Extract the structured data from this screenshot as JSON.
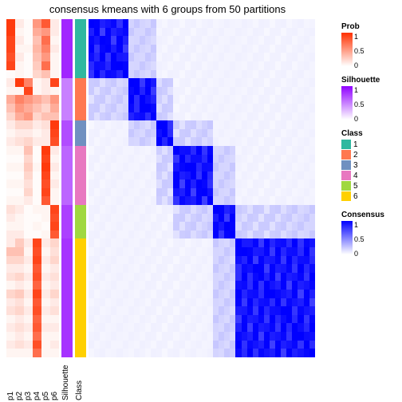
{
  "title": "consensus kmeans with 6 groups from 50 partitions",
  "layout": {
    "rows": 40,
    "row_h": 10.6,
    "p_w": 11,
    "ann_w": 14,
    "gap": 3,
    "cons_w": 7.1,
    "cons_cols": 40
  },
  "colors": {
    "prob": [
      "#ffffff",
      "#ff3000"
    ],
    "silh": [
      "#ffffff",
      "#9000ff"
    ],
    "cons": [
      "#ffffff",
      "#0000ff"
    ],
    "class": {
      "1": "#2fb8a0",
      "2": "#ff7850",
      "3": "#7090c0",
      "4": "#e878c0",
      "5": "#a0d840",
      "6": "#ffd000"
    }
  },
  "xlabels": [
    "p1",
    "p2",
    "p3",
    "p4",
    "p5",
    "p6",
    "Silhouette",
    "Class"
  ],
  "groups": [
    {
      "cls": "1",
      "n": 7
    },
    {
      "cls": "2",
      "n": 5
    },
    {
      "cls": "3",
      "n": 3
    },
    {
      "cls": "4",
      "n": 7
    },
    {
      "cls": "5",
      "n": 4
    },
    {
      "cls": "6",
      "n": 14
    }
  ],
  "p": [
    [
      0.95,
      0.1,
      0.02,
      0.5,
      0.8,
      0.1
    ],
    [
      0.95,
      0.05,
      0.02,
      0.4,
      0.5,
      0.1
    ],
    [
      0.9,
      0.1,
      0.02,
      0.3,
      0.7,
      0.05
    ],
    [
      0.9,
      0.05,
      0.05,
      0.35,
      0.6,
      0.1
    ],
    [
      0.85,
      0.1,
      0.02,
      0.3,
      0.5,
      0.05
    ],
    [
      0.9,
      0.05,
      0.02,
      0.25,
      0.7,
      0.05
    ],
    [
      0.02,
      0.05,
      0.02,
      0.2,
      0.3,
      0.05
    ],
    [
      0.1,
      0.95,
      0.6,
      0.05,
      0.1,
      0.9
    ],
    [
      0.05,
      0.05,
      0.9,
      0.05,
      0.1,
      0.05
    ],
    [
      0.4,
      0.6,
      0.5,
      0.4,
      0.3,
      0.5
    ],
    [
      0.3,
      0.5,
      0.4,
      0.3,
      0.2,
      0.4
    ],
    [
      0.2,
      0.4,
      0.5,
      0.2,
      0.3,
      0.3
    ],
    [
      0.1,
      0.2,
      0.2,
      0.1,
      0.15,
      0.95
    ],
    [
      0.05,
      0.1,
      0.1,
      0.05,
      0.1,
      0.9
    ],
    [
      0.1,
      0.15,
      0.2,
      0.1,
      0.1,
      0.85
    ],
    [
      0.05,
      0.05,
      0.3,
      0.02,
      0.95,
      0.1
    ],
    [
      0.02,
      0.02,
      0.2,
      0.02,
      0.9,
      0.05
    ],
    [
      0.05,
      0.05,
      0.25,
      0.05,
      0.95,
      0.1
    ],
    [
      0.02,
      0.02,
      0.2,
      0.02,
      0.9,
      0.05
    ],
    [
      0.05,
      0.05,
      0.15,
      0.02,
      0.85,
      0.1
    ],
    [
      0.02,
      0.02,
      0.2,
      0.02,
      0.9,
      0.05
    ],
    [
      0.05,
      0.05,
      0.1,
      0.02,
      0.8,
      0.05
    ],
    [
      0.15,
      0.1,
      0.02,
      0.05,
      0.05,
      0.9
    ],
    [
      0.1,
      0.05,
      0.02,
      0.02,
      0.05,
      0.85
    ],
    [
      0.05,
      0.05,
      0.02,
      0.05,
      0.02,
      0.9
    ],
    [
      0.1,
      0.1,
      0.02,
      0.02,
      0.05,
      0.8
    ],
    [
      0.1,
      0.25,
      0.1,
      0.9,
      0.1,
      0.2
    ],
    [
      0.3,
      0.3,
      0.05,
      0.85,
      0.05,
      0.15
    ],
    [
      0.2,
      0.2,
      0.1,
      0.9,
      0.1,
      0.2
    ],
    [
      0.1,
      0.1,
      0.05,
      0.8,
      0.05,
      0.1
    ],
    [
      0.15,
      0.2,
      0.1,
      0.85,
      0.1,
      0.15
    ],
    [
      0.05,
      0.1,
      0.05,
      0.75,
      0.05,
      0.1
    ],
    [
      0.2,
      0.25,
      0.1,
      0.9,
      0.1,
      0.2
    ],
    [
      0.1,
      0.15,
      0.05,
      0.8,
      0.05,
      0.1
    ],
    [
      0.15,
      0.2,
      0.1,
      0.85,
      0.1,
      0.15
    ],
    [
      0.05,
      0.1,
      0.05,
      0.75,
      0.05,
      0.05
    ],
    [
      0.1,
      0.15,
      0.1,
      0.8,
      0.1,
      0.1
    ],
    [
      0.05,
      0.1,
      0.05,
      0.7,
      0.05,
      0.05
    ],
    [
      0.1,
      0.15,
      0.1,
      0.85,
      0.05,
      0.1
    ],
    [
      0.05,
      0.05,
      0.05,
      0.7,
      0.05,
      0.05
    ]
  ],
  "silh": [
    0.85,
    0.85,
    0.85,
    0.85,
    0.85,
    0.85,
    0.85,
    0.5,
    0.5,
    0.5,
    0.5,
    0.5,
    0.7,
    0.7,
    0.7,
    0.6,
    0.6,
    0.6,
    0.6,
    0.6,
    0.6,
    0.6,
    0.75,
    0.75,
    0.75,
    0.75,
    0.8,
    0.8,
    0.8,
    0.8,
    0.8,
    0.8,
    0.8,
    0.8,
    0.8,
    0.8,
    0.8,
    0.8,
    0.8,
    0.8
  ],
  "legends": {
    "prob": {
      "title": "Prob",
      "ticks": [
        {
          "v": "1",
          "p": 0
        },
        {
          "v": "0.5",
          "p": 0.5
        },
        {
          "v": "0",
          "p": 1
        }
      ]
    },
    "silh": {
      "title": "Silhouette",
      "ticks": [
        {
          "v": "1",
          "p": 0
        },
        {
          "v": "0.5",
          "p": 0.5
        },
        {
          "v": "0",
          "p": 1
        }
      ]
    },
    "class": {
      "title": "Class",
      "items": [
        "1",
        "2",
        "3",
        "4",
        "5",
        "6"
      ]
    },
    "cons": {
      "title": "Consensus",
      "ticks": [
        {
          "v": "1",
          "p": 0
        },
        {
          "v": "0.5",
          "p": 0.5
        },
        {
          "v": "0",
          "p": 1
        }
      ]
    }
  }
}
